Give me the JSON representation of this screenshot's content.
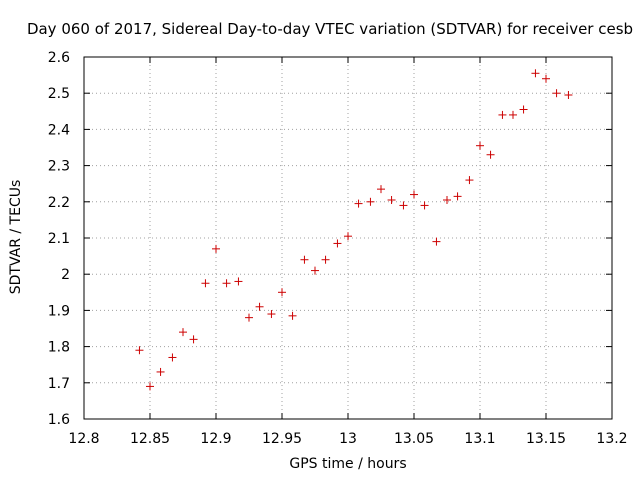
{
  "chart_data": {
    "type": "scatter",
    "title": "Day 060 of 2017, Sidereal Day-to-day VTEC variation (SDTVAR) for receiver cesb",
    "xlabel": "GPS time / hours",
    "ylabel": "SDTVAR / TECUs",
    "xlim": [
      12.8,
      13.2
    ],
    "ylim": [
      1.6,
      2.6
    ],
    "xticks": [
      "12.8",
      "12.85",
      "12.9",
      "12.95",
      "13",
      "13.05",
      "13.1",
      "13.15",
      "13.2"
    ],
    "yticks": [
      "1.6",
      "1.7",
      "1.8",
      "1.9",
      "2",
      "2.1",
      "2.2",
      "2.3",
      "2.4",
      "2.5",
      "2.6"
    ],
    "grid": true,
    "marker": "+",
    "marker_color": "#cc0000",
    "series": [
      {
        "name": "SDTVAR",
        "x": [
          12.842,
          12.85,
          12.858,
          12.867,
          12.875,
          12.883,
          12.892,
          12.9,
          12.908,
          12.917,
          12.925,
          12.933,
          12.942,
          12.95,
          12.958,
          12.967,
          12.975,
          12.983,
          12.992,
          13.0,
          13.008,
          13.017,
          13.025,
          13.033,
          13.042,
          13.05,
          13.058,
          13.067,
          13.075,
          13.083,
          13.092,
          13.1,
          13.108,
          13.117,
          13.125,
          13.133,
          13.142,
          13.15,
          13.158,
          13.167
        ],
        "y": [
          1.79,
          1.69,
          1.73,
          1.77,
          1.84,
          1.82,
          1.975,
          2.07,
          1.975,
          1.98,
          1.88,
          1.91,
          1.89,
          1.95,
          1.885,
          2.04,
          2.01,
          2.04,
          2.085,
          2.105,
          2.195,
          2.2,
          2.235,
          2.205,
          2.19,
          2.22,
          2.19,
          2.09,
          2.205,
          2.215,
          2.26,
          2.355,
          2.33,
          2.44,
          2.44,
          2.455,
          2.555,
          2.54,
          2.5,
          2.495
        ]
      }
    ]
  }
}
